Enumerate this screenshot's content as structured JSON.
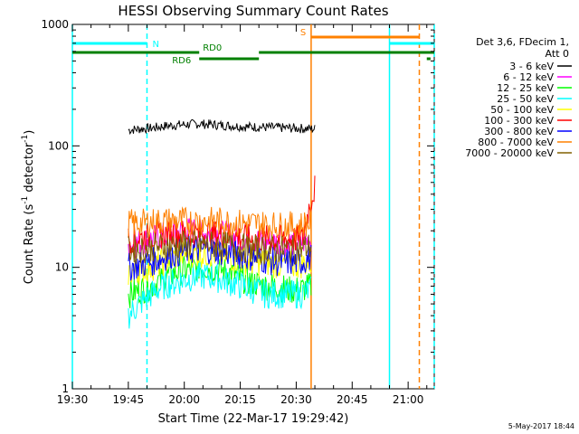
{
  "chart_data": {
    "type": "line",
    "title": "HESSI Observing Summary Count Rates",
    "xlabel": "Start Time (22-Mar-17 19:29:42)",
    "ylabel_main": "Count Rate (s",
    "ylabel_sup1": "-1",
    "ylabel_mid": " detector",
    "ylabel_sup2": "-1",
    "ylabel_end": ")",
    "yscale": "log",
    "ylim": [
      1,
      1000
    ],
    "xlim_minutes": [
      0,
      97
    ],
    "x_ticks": [
      {
        "t": 0,
        "label": "19:30"
      },
      {
        "t": 15,
        "label": "19:45"
      },
      {
        "t": 30,
        "label": "20:00"
      },
      {
        "t": 45,
        "label": "20:15"
      },
      {
        "t": 60,
        "label": "20:30"
      },
      {
        "t": 75,
        "label": "20:45"
      },
      {
        "t": 90,
        "label": "21:00"
      }
    ],
    "y_ticks": [
      {
        "v": 1,
        "label": "1"
      },
      {
        "v": 10,
        "label": "10"
      },
      {
        "v": 100,
        "label": "100"
      },
      {
        "v": 1000,
        "label": "1000"
      }
    ],
    "legend_header": [
      "Det 3,6, FDecim 1,",
      "Att 0"
    ],
    "series": [
      {
        "name": "3 - 6 keV",
        "color": "#000000",
        "start": 15,
        "end": 65,
        "values": [
          135,
          138,
          140,
          145,
          148,
          150,
          152,
          150,
          148,
          146,
          144,
          143,
          142,
          141,
          140,
          139,
          138
        ]
      },
      {
        "name": "6 - 12 keV",
        "color": "#ff00ff",
        "start": 15,
        "end": 64,
        "values": [
          15,
          16,
          17,
          18,
          19,
          20,
          20,
          19,
          19,
          18,
          17,
          17,
          16,
          16,
          16,
          16,
          17
        ]
      },
      {
        "name": "12 - 25 keV",
        "color": "#00ff00",
        "start": 15,
        "end": 64,
        "values": [
          6,
          6.5,
          7,
          8,
          9,
          9.5,
          10,
          10,
          9.5,
          9,
          8,
          7.5,
          7,
          7,
          6.5,
          6.5,
          7
        ]
      },
      {
        "name": "25 - 50 keV",
        "color": "#00ffff",
        "start": 15,
        "end": 64,
        "values": [
          4,
          5,
          6,
          7,
          7.5,
          8,
          8.5,
          8.5,
          8,
          7.5,
          7,
          6.5,
          6,
          6,
          6,
          6,
          6.5
        ]
      },
      {
        "name": "50 - 100 keV",
        "color": "#ffff00",
        "start": 15,
        "end": 64,
        "values": [
          9,
          9.5,
          10,
          11,
          12,
          13,
          13,
          13,
          12.5,
          12,
          11.5,
          11,
          11,
          10.5,
          10.5,
          10.5,
          11
        ]
      },
      {
        "name": "100 - 300 keV",
        "color": "#ff0000",
        "start": 15,
        "end": 65,
        "values": [
          17,
          17.5,
          18,
          18.5,
          19,
          19,
          19,
          19,
          18.5,
          18,
          17.5,
          17,
          17,
          17,
          17,
          17,
          45
        ]
      },
      {
        "name": "300 - 800 keV",
        "color": "#0000ff",
        "start": 15,
        "end": 64,
        "values": [
          10,
          10.5,
          11,
          12,
          13,
          13.5,
          14,
          14,
          13.5,
          13,
          12.5,
          12,
          11.5,
          11,
          11,
          11,
          12
        ]
      },
      {
        "name": "800 - 7000 keV",
        "color": "#ff8000",
        "start": 15,
        "end": 64,
        "values": [
          23,
          23,
          23.5,
          24,
          24,
          24,
          24,
          24,
          24,
          23.5,
          23,
          23,
          22.5,
          22,
          22,
          22,
          24
        ]
      },
      {
        "name": "7000 - 20000 keV",
        "color": "#806000",
        "start": 15,
        "end": 64,
        "values": [
          14,
          14,
          14.5,
          15,
          15,
          15.5,
          15.5,
          15.5,
          15,
          15,
          14.5,
          14,
          14,
          14,
          14,
          14,
          15
        ]
      }
    ],
    "vertical_lines": [
      {
        "t": 0,
        "color": "#00ffff",
        "style": "solid"
      },
      {
        "t": 20,
        "color": "#00ffff",
        "style": "dashed"
      },
      {
        "t": 64,
        "color": "#ff8000",
        "style": "solid"
      },
      {
        "t": 85,
        "color": "#00ffff",
        "style": "solid"
      },
      {
        "t": 97,
        "color": "#00ffff",
        "style": "dashed"
      },
      {
        "t": 93,
        "color": "#ff8000",
        "style": "dashed"
      }
    ],
    "flag_bars": [
      {
        "label": "N",
        "color": "#00ffff",
        "level": 1,
        "segments": [
          [
            0,
            20
          ],
          [
            85,
            97
          ]
        ]
      },
      {
        "label": "S",
        "color": "#ff8000",
        "level": 0,
        "segments": [
          [
            64,
            93
          ]
        ]
      },
      {
        "label": "RD0",
        "color": "#008000",
        "level": 2,
        "segments": [
          [
            0,
            34
          ],
          [
            50,
            97
          ]
        ]
      },
      {
        "label": "RD6",
        "color": "#008000",
        "level": 3,
        "segments": [
          [
            34,
            50
          ],
          [
            95,
            96
          ]
        ]
      }
    ],
    "timestamp": "5-May-2017 18:44"
  }
}
